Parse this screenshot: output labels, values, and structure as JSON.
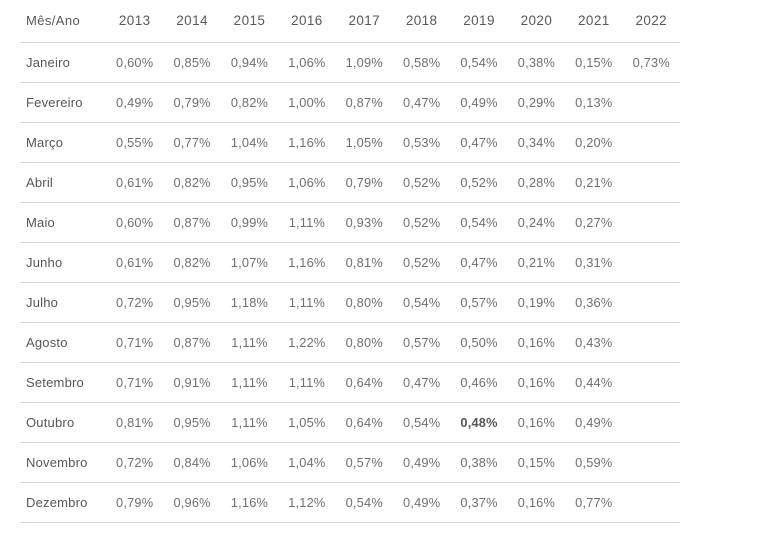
{
  "chart_data": {
    "type": "table",
    "title": "",
    "header": [
      "Mês/Ano",
      "2013",
      "2014",
      "2015",
      "2016",
      "2017",
      "2018",
      "2019",
      "2020",
      "2021",
      "2022"
    ],
    "rows": [
      {
        "month": "Janeiro",
        "values": [
          "0,60%",
          "0,85%",
          "0,94%",
          "1,06%",
          "1,09%",
          "0,58%",
          "0,54%",
          "0,38%",
          "0,15%",
          "0,73%"
        ]
      },
      {
        "month": "Fevereiro",
        "values": [
          "0,49%",
          "0,79%",
          "0,82%",
          "1,00%",
          "0,87%",
          "0,47%",
          "0,49%",
          "0,29%",
          "0,13%",
          ""
        ]
      },
      {
        "month": "Março",
        "values": [
          "0,55%",
          "0,77%",
          "1,04%",
          "1,16%",
          "1,05%",
          "0,53%",
          "0,47%",
          "0,34%",
          "0,20%",
          ""
        ]
      },
      {
        "month": "Abril",
        "values": [
          "0,61%",
          "0,82%",
          "0,95%",
          "1,06%",
          "0,79%",
          "0,52%",
          "0,52%",
          "0,28%",
          "0,21%",
          ""
        ]
      },
      {
        "month": "Maio",
        "values": [
          "0,60%",
          "0,87%",
          "0,99%",
          "1,11%",
          "0,93%",
          "0,52%",
          "0,54%",
          "0,24%",
          "0,27%",
          ""
        ]
      },
      {
        "month": "Junho",
        "values": [
          "0,61%",
          "0,82%",
          "1,07%",
          "1,16%",
          "0,81%",
          "0,52%",
          "0,47%",
          "0,21%",
          "0,31%",
          ""
        ]
      },
      {
        "month": "Julho",
        "values": [
          "0,72%",
          "0,95%",
          "1,18%",
          "1,11%",
          "0,80%",
          "0,54%",
          "0,57%",
          "0,19%",
          "0,36%",
          ""
        ]
      },
      {
        "month": "Agosto",
        "values": [
          "0,71%",
          "0,87%",
          "1,11%",
          "1,22%",
          "0,80%",
          "0,57%",
          "0,50%",
          "0,16%",
          "0,43%",
          ""
        ]
      },
      {
        "month": "Setembro",
        "values": [
          "0,71%",
          "0,91%",
          "1,11%",
          "1,11%",
          "0,64%",
          "0,47%",
          "0,46%",
          "0,16%",
          "0,44%",
          ""
        ]
      },
      {
        "month": "Outubro",
        "values": [
          "0,81%",
          "0,95%",
          "1,11%",
          "1,05%",
          "0,64%",
          "0,54%",
          "0,48%",
          "0,16%",
          "0,49%",
          ""
        ],
        "bold_index": 6
      },
      {
        "month": "Novembro",
        "values": [
          "0,72%",
          "0,84%",
          "1,06%",
          "1,04%",
          "0,57%",
          "0,49%",
          "0,38%",
          "0,15%",
          "0,59%",
          ""
        ]
      },
      {
        "month": "Dezembro",
        "values": [
          "0,79%",
          "0,96%",
          "1,16%",
          "1,12%",
          "0,54%",
          "0,49%",
          "0,37%",
          "0,16%",
          "0,77%",
          ""
        ]
      }
    ]
  },
  "colors": {
    "divider": "#c7dbe7",
    "header_text": "#58595b",
    "month_text": "#56575a",
    "value_text": "#6e6f72",
    "background": "#ffffff"
  }
}
